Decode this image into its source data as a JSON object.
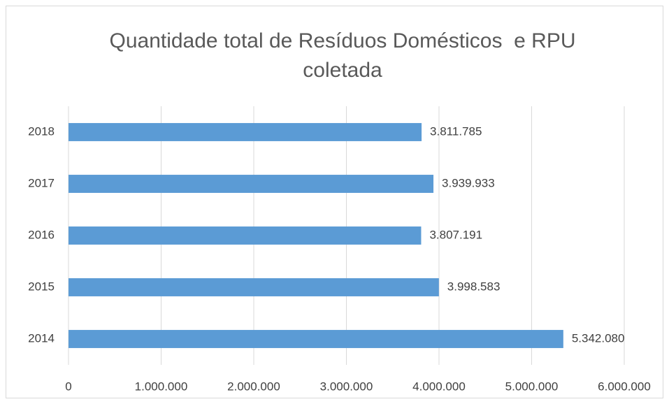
{
  "chart_data": {
    "type": "barh",
    "title": "Quantidade total de Resíduos Domésticos  e RPU coletada",
    "categories": [
      "2014",
      "2015",
      "2016",
      "2017",
      "2018"
    ],
    "values": [
      5342080,
      3998583,
      3807191,
      3939933,
      3811785
    ],
    "value_labels": [
      "5.342.080",
      "3.998.583",
      "3.807.191",
      "3.939.933",
      "3.811.785"
    ],
    "color": "#5b9bd5",
    "xlim": [
      0,
      6000000
    ],
    "xticks": [
      0,
      {
        "value": 1000000,
        "label": "1.000.000"
      },
      {
        "value": 2000000,
        "label": "2.000.000"
      },
      {
        "value": 3000000,
        "label": "3.000.000"
      },
      {
        "value": 4000000,
        "label": "4.000.000"
      },
      {
        "value": 5000000,
        "label": "5.000.000"
      },
      {
        "value": 6000000,
        "label": "6.000.000"
      }
    ],
    "grid": true
  }
}
